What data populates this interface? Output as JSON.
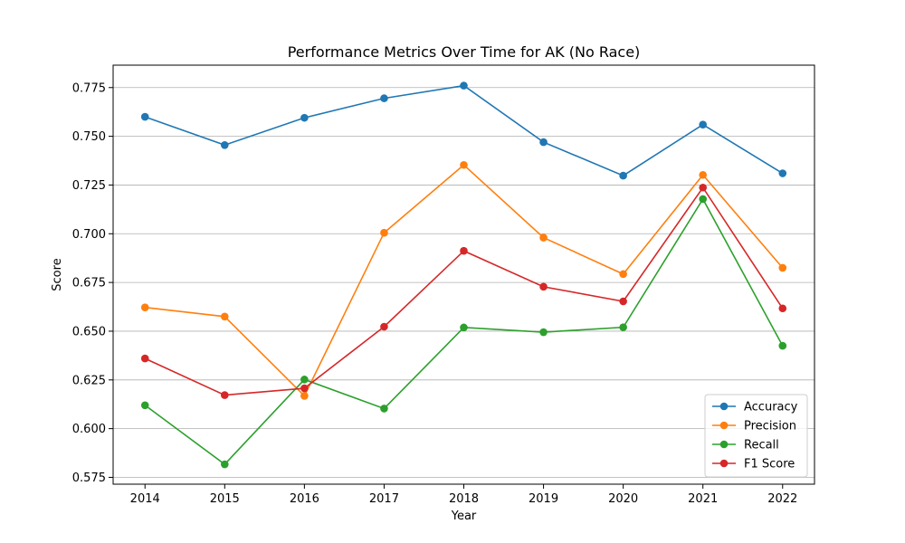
{
  "chart_data": {
    "type": "line",
    "title": "Performance Metrics Over Time for AK (No Race)",
    "xlabel": "Year",
    "ylabel": "Score",
    "x": [
      2014,
      2015,
      2016,
      2017,
      2018,
      2019,
      2020,
      2021,
      2022
    ],
    "x_tick_labels": [
      "2014",
      "2015",
      "2016",
      "2017",
      "2018",
      "2019",
      "2020",
      "2021",
      "2022"
    ],
    "y_ticks": [
      0.575,
      0.6,
      0.625,
      0.65,
      0.675,
      0.7,
      0.725,
      0.75,
      0.775
    ],
    "y_tick_labels": [
      "0.575",
      "0.600",
      "0.625",
      "0.650",
      "0.675",
      "0.700",
      "0.725",
      "0.750",
      "0.775"
    ],
    "xlim": [
      2013.6,
      2022.4
    ],
    "ylim": [
      0.5715,
      0.7865
    ],
    "grid": "horizontal",
    "legend_position": "lower right",
    "series": [
      {
        "name": "Accuracy",
        "color": "#1f77b4",
        "values": [
          0.76,
          0.7455,
          0.7595,
          0.7695,
          0.776,
          0.747,
          0.7298,
          0.756,
          0.731
        ]
      },
      {
        "name": "Precision",
        "color": "#ff7f0e",
        "values": [
          0.6622,
          0.6575,
          0.6168,
          0.7005,
          0.7353,
          0.698,
          0.6793,
          0.7302,
          0.6825
        ]
      },
      {
        "name": "Recall",
        "color": "#2ca02c",
        "values": [
          0.612,
          0.5817,
          0.6252,
          0.6103,
          0.6519,
          0.6495,
          0.652,
          0.7178,
          0.6425
        ]
      },
      {
        "name": "F1 Score",
        "color": "#d62728",
        "values": [
          0.636,
          0.6172,
          0.6207,
          0.6523,
          0.6912,
          0.6728,
          0.6653,
          0.7237,
          0.6617
        ]
      }
    ]
  }
}
